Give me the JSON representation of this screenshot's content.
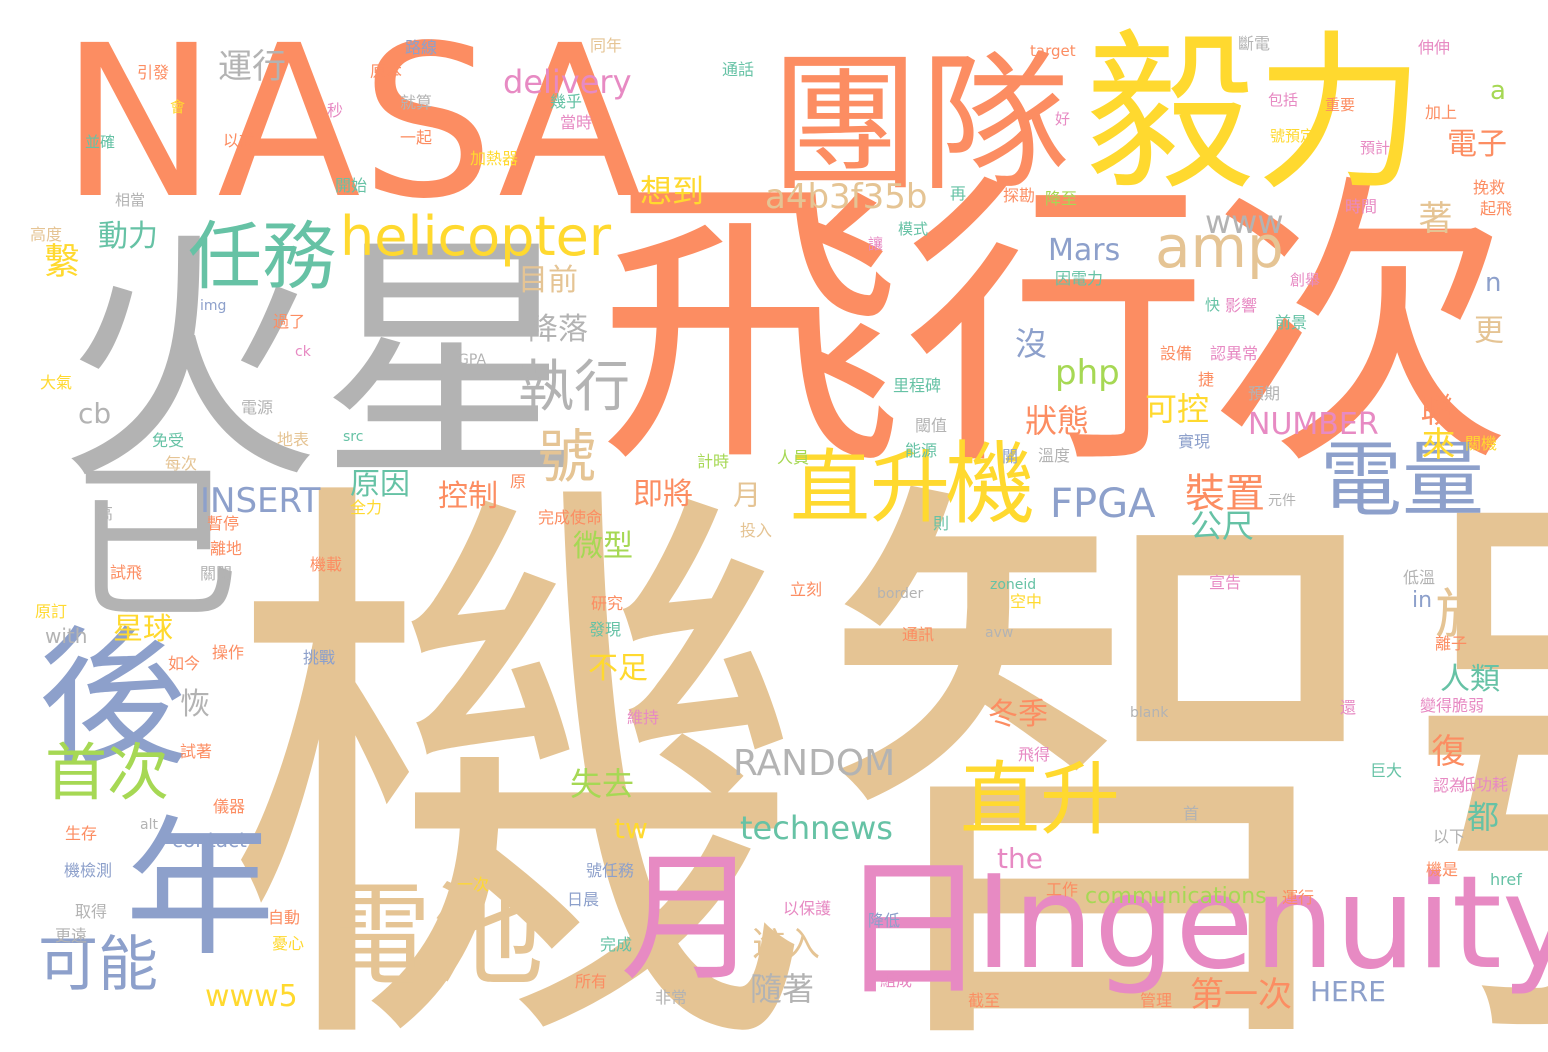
{
  "palette": {
    "orange": "#fc8d62",
    "gray": "#b3b3b3",
    "tan": "#e5c494",
    "yellow": "#ffd92f",
    "blue": "#8da0cb",
    "pink": "#e78ac3",
    "green": "#a6d854",
    "teal": "#66c2a5"
  },
  "words": [
    {
      "text": "機智號",
      "color": "tan"
    },
    {
      "text": "飛行次",
      "color": "orange"
    },
    {
      "text": "NASA",
      "color": "orange"
    },
    {
      "text": "火星",
      "color": "gray"
    },
    {
      "text": "毅力",
      "color": "yellow"
    },
    {
      "text": "團隊",
      "color": "orange"
    },
    {
      "text": "已",
      "color": "gray"
    },
    {
      "text": "Ingenuity",
      "color": "pink"
    },
    {
      "text": "日",
      "color": "pink"
    },
    {
      "text": "月",
      "color": "pink"
    },
    {
      "text": "年",
      "color": "blue"
    },
    {
      "text": "後",
      "color": "blue"
    },
    {
      "text": "電池",
      "color": "tan"
    },
    {
      "text": "電量",
      "color": "blue"
    },
    {
      "text": "直升",
      "color": "yellow"
    },
    {
      "text": "機",
      "color": "yellow"
    },
    {
      "text": "直升",
      "color": "yellow"
    },
    {
      "text": "任務",
      "color": "teal"
    },
    {
      "text": "helicopter",
      "color": "yellow"
    },
    {
      "text": "amp",
      "color": "tan"
    },
    {
      "text": "首次",
      "color": "green"
    },
    {
      "text": "可能",
      "color": "blue"
    },
    {
      "text": "執行",
      "color": "gray"
    },
    {
      "text": "號",
      "color": "tan"
    },
    {
      "text": "於",
      "color": "tan"
    },
    {
      "text": "FPGA",
      "color": "blue"
    },
    {
      "text": "裝置",
      "color": "orange"
    },
    {
      "text": "a4b3f35b",
      "color": "tan"
    },
    {
      "text": "INSERT",
      "color": "blue"
    },
    {
      "text": "RANDOM",
      "color": "gray"
    },
    {
      "text": "technews",
      "color": "teal"
    },
    {
      "text": "delivery",
      "color": "pink"
    },
    {
      "text": "Mars",
      "color": "blue"
    },
    {
      "text": "php",
      "color": "green"
    },
    {
      "text": "www",
      "color": "gray"
    },
    {
      "text": "www5",
      "color": "yellow"
    },
    {
      "text": "NUMBER",
      "color": "pink"
    },
    {
      "text": "HERE",
      "color": "blue"
    },
    {
      "text": "the",
      "color": "pink"
    },
    {
      "text": "tw",
      "color": "yellow"
    },
    {
      "text": "cb",
      "color": "gray"
    },
    {
      "text": "communications",
      "color": "green"
    },
    {
      "text": "contact",
      "color": "blue"
    },
    {
      "text": "with",
      "color": "gray"
    },
    {
      "text": "in",
      "color": "blue"
    },
    {
      "text": "a",
      "color": "green"
    },
    {
      "text": "n",
      "color": "blue"
    },
    {
      "text": "運行",
      "color": "gray"
    },
    {
      "text": "想到",
      "color": "yellow"
    },
    {
      "text": "動力",
      "color": "teal"
    },
    {
      "text": "目前",
      "color": "tan"
    },
    {
      "text": "降落",
      "color": "gray"
    },
    {
      "text": "沒",
      "color": "blue"
    },
    {
      "text": "狀態",
      "color": "orange"
    },
    {
      "text": "可控",
      "color": "yellow"
    },
    {
      "text": "原因",
      "color": "teal"
    },
    {
      "text": "控制",
      "color": "orange"
    },
    {
      "text": "即將",
      "color": "orange"
    },
    {
      "text": "微型",
      "color": "green"
    },
    {
      "text": "星球",
      "color": "yellow"
    },
    {
      "text": "恢",
      "color": "gray"
    },
    {
      "text": "不足",
      "color": "yellow"
    },
    {
      "text": "冬季",
      "color": "orange"
    },
    {
      "text": "失去",
      "color": "green"
    },
    {
      "text": "人類",
      "color": "teal"
    },
    {
      "text": "公尺",
      "color": "teal"
    },
    {
      "text": "聯",
      "color": "orange"
    },
    {
      "text": "來",
      "color": "yellow"
    },
    {
      "text": "復",
      "color": "orange"
    },
    {
      "text": "都",
      "color": "teal"
    },
    {
      "text": "電子",
      "color": "orange"
    },
    {
      "text": "著",
      "color": "tan"
    },
    {
      "text": "更",
      "color": "tan"
    },
    {
      "text": "第一次",
      "color": "orange"
    },
    {
      "text": "進入",
      "color": "tan"
    },
    {
      "text": "隨著",
      "color": "gray"
    },
    {
      "text": "繫",
      "color": "yellow"
    },
    {
      "text": "月",
      "color": "tan"
    },
    {
      "text": "img",
      "color": "blue"
    },
    {
      "text": "ck",
      "color": "pink"
    },
    {
      "text": "src",
      "color": "teal"
    },
    {
      "text": "FGPA",
      "color": "gray"
    },
    {
      "text": "alt",
      "color": "gray"
    },
    {
      "text": "href",
      "color": "teal"
    },
    {
      "text": "blank",
      "color": "gray"
    },
    {
      "text": "avw",
      "color": "gray"
    },
    {
      "text": "zoneid",
      "color": "teal"
    },
    {
      "text": "border",
      "color": "gray"
    },
    {
      "text": "target",
      "color": "orange"
    },
    {
      "text": "元件",
      "color": "gray"
    },
    {
      "text": "引發",
      "color": "orange"
    },
    {
      "text": "路線",
      "color": "blue"
    },
    {
      "text": "同年",
      "color": "tan"
    },
    {
      "text": "斷電",
      "color": "gray"
    },
    {
      "text": "伸伸",
      "color": "pink"
    },
    {
      "text": "原本",
      "color": "orange"
    },
    {
      "text": "就算",
      "color": "gray"
    },
    {
      "text": "通話",
      "color": "teal"
    },
    {
      "text": "幾乎",
      "color": "teal"
    },
    {
      "text": "當時",
      "color": "pink"
    },
    {
      "text": "包括",
      "color": "pink"
    },
    {
      "text": "重要",
      "color": "orange"
    },
    {
      "text": "加上",
      "color": "orange"
    },
    {
      "text": "號預定",
      "color": "yellow"
    },
    {
      "text": "預計",
      "color": "pink"
    },
    {
      "text": "並確",
      "color": "teal"
    },
    {
      "text": "以前",
      "color": "orange"
    },
    {
      "text": "一起",
      "color": "orange"
    },
    {
      "text": "加熱器",
      "color": "yellow"
    },
    {
      "text": "好",
      "color": "pink"
    },
    {
      "text": "相當",
      "color": "gray"
    },
    {
      "text": "開始",
      "color": "teal"
    },
    {
      "text": "探勘",
      "color": "orange"
    },
    {
      "text": "降至",
      "color": "green"
    },
    {
      "text": "挽救",
      "color": "orange"
    },
    {
      "text": "起飛",
      "color": "orange"
    },
    {
      "text": "時間",
      "color": "pink"
    },
    {
      "text": "高度",
      "color": "tan"
    },
    {
      "text": "再",
      "color": "teal"
    },
    {
      "text": "模式",
      "color": "teal"
    },
    {
      "text": "讓",
      "color": "pink"
    },
    {
      "text": "因電力",
      "color": "teal"
    },
    {
      "text": "創舉",
      "color": "pink"
    },
    {
      "text": "快",
      "color": "teal"
    },
    {
      "text": "影響",
      "color": "pink"
    },
    {
      "text": "前景",
      "color": "teal"
    },
    {
      "text": "過了",
      "color": "orange"
    },
    {
      "text": "大氣",
      "color": "yellow"
    },
    {
      "text": "設備",
      "color": "orange"
    },
    {
      "text": "認異常",
      "color": "pink"
    },
    {
      "text": "里程碑",
      "color": "teal"
    },
    {
      "text": "捷",
      "color": "orange"
    },
    {
      "text": "預期",
      "color": "gray"
    },
    {
      "text": "電源",
      "color": "gray"
    },
    {
      "text": "閾值",
      "color": "gray"
    },
    {
      "text": "實現",
      "color": "blue"
    },
    {
      "text": "免受",
      "color": "teal"
    },
    {
      "text": "地表",
      "color": "tan"
    },
    {
      "text": "每次",
      "color": "tan"
    },
    {
      "text": "計時",
      "color": "green"
    },
    {
      "text": "人員",
      "color": "green"
    },
    {
      "text": "能源",
      "color": "teal"
    },
    {
      "text": "開",
      "color": "blue"
    },
    {
      "text": "溫度",
      "color": "gray"
    },
    {
      "text": "關機",
      "color": "yellow"
    },
    {
      "text": "高",
      "color": "gray"
    },
    {
      "text": "全力",
      "color": "yellow"
    },
    {
      "text": "原",
      "color": "orange"
    },
    {
      "text": "完成使命",
      "color": "orange"
    },
    {
      "text": "暫停",
      "color": "orange"
    },
    {
      "text": "則",
      "color": "teal"
    },
    {
      "text": "投入",
      "color": "tan"
    },
    {
      "text": "離地",
      "color": "orange"
    },
    {
      "text": "試飛",
      "color": "orange"
    },
    {
      "text": "機載",
      "color": "orange"
    },
    {
      "text": "關閉",
      "color": "gray"
    },
    {
      "text": "立刻",
      "color": "orange"
    },
    {
      "text": "低溫",
      "color": "gray"
    },
    {
      "text": "空中",
      "color": "yellow"
    },
    {
      "text": "宣告",
      "color": "pink"
    },
    {
      "text": "原訂",
      "color": "yellow"
    },
    {
      "text": "研究",
      "color": "orange"
    },
    {
      "text": "發現",
      "color": "teal"
    },
    {
      "text": "通訊",
      "color": "orange"
    },
    {
      "text": "離子",
      "color": "orange"
    },
    {
      "text": "如今",
      "color": "orange"
    },
    {
      "text": "操作",
      "color": "orange"
    },
    {
      "text": "挑戰",
      "color": "blue"
    },
    {
      "text": "還",
      "color": "pink"
    },
    {
      "text": "變得脆弱",
      "color": "pink"
    },
    {
      "text": "維持",
      "color": "pink"
    },
    {
      "text": "試著",
      "color": "orange"
    },
    {
      "text": "飛得",
      "color": "pink"
    },
    {
      "text": "巨大",
      "color": "teal"
    },
    {
      "text": "認為",
      "color": "pink"
    },
    {
      "text": "低功耗",
      "color": "pink"
    },
    {
      "text": "儀器",
      "color": "orange"
    },
    {
      "text": "生存",
      "color": "orange"
    },
    {
      "text": "首",
      "color": "gray"
    },
    {
      "text": "以下",
      "color": "gray"
    },
    {
      "text": "機檢測",
      "color": "blue"
    },
    {
      "text": "號任務",
      "color": "blue"
    },
    {
      "text": "機是",
      "color": "orange"
    },
    {
      "text": "一次",
      "color": "yellow"
    },
    {
      "text": "工作",
      "color": "orange"
    },
    {
      "text": "運行",
      "color": "orange"
    },
    {
      "text": "取得",
      "color": "gray"
    },
    {
      "text": "自動",
      "color": "orange"
    },
    {
      "text": "日晨",
      "color": "blue"
    },
    {
      "text": "以保護",
      "color": "pink"
    },
    {
      "text": "降低",
      "color": "blue"
    },
    {
      "text": "更遠",
      "color": "gray"
    },
    {
      "text": "憂心",
      "color": "yellow"
    },
    {
      "text": "完成",
      "color": "teal"
    },
    {
      "text": "所有",
      "color": "orange"
    },
    {
      "text": "組成",
      "color": "pink"
    },
    {
      "text": "非常",
      "color": "gray"
    },
    {
      "text": "截至",
      "color": "orange"
    },
    {
      "text": "管理",
      "color": "orange"
    },
    {
      "text": "秒",
      "color": "pink"
    },
    {
      "text": "會",
      "color": "yellow"
    }
  ]
}
